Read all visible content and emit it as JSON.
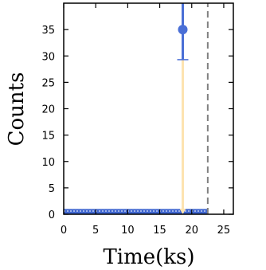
{
  "chart_data": {
    "type": "scatter",
    "xlabel": "Time(ks)",
    "ylabel": "Counts",
    "xlim": [
      0,
      26.5
    ],
    "ylim": [
      0,
      40
    ],
    "xticks": [
      0,
      5,
      10,
      15,
      20,
      25
    ],
    "yticks": [
      0,
      5,
      10,
      15,
      20,
      25,
      30,
      35
    ],
    "grid": false,
    "points": [
      {
        "x": 18.6,
        "y": 35,
        "yerr_low": 29.3,
        "yerr_high": 40
      }
    ],
    "baseline_band": {
      "y_low": 0,
      "y_high": 1.0,
      "x_start": 0,
      "x_end": 22.5
    },
    "baseline_dotted_y": 0.6,
    "upper_limit_arrow": {
      "x": 18.6,
      "y_from": 29.3,
      "y_to": 0
    },
    "vline": {
      "x": 22.5,
      "style": "dashed"
    },
    "colors": {
      "point": "#4a6fd6",
      "band": "#3f66d0",
      "arrow": "#fde3b0",
      "vline": "#808080",
      "axes": "#000000"
    }
  }
}
